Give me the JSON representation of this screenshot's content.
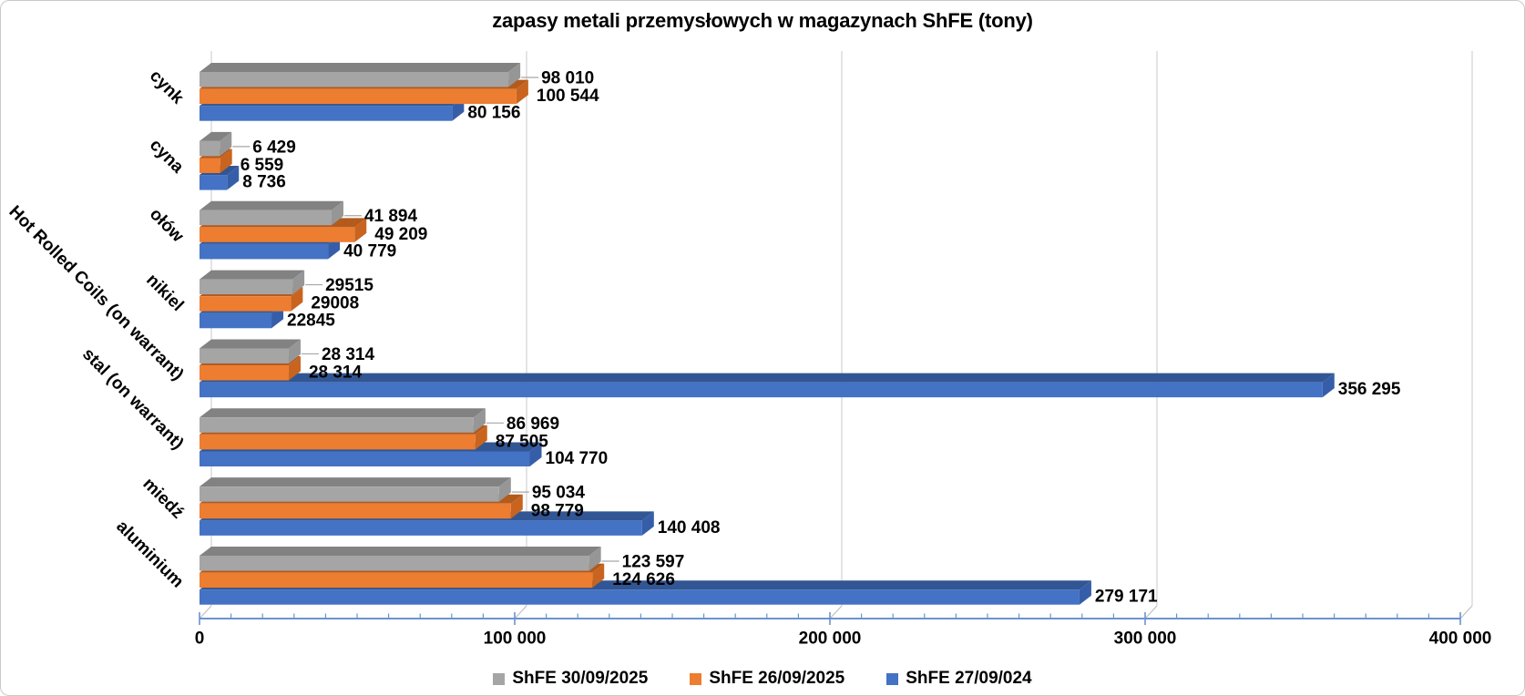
{
  "title": "zapasy metali przemysłowych w magazynach ShFE (tony)",
  "chart_data": {
    "type": "bar",
    "orientation": "horizontal",
    "style": "3d-extruded",
    "title": "zapasy metali przemysłowych w magazynach ShFE (tony)",
    "categories_top_to_bottom": [
      "cynk",
      "cyna",
      "ołów",
      "nikiel",
      "Hot Rolled Coils (on warrant)",
      "stal (on warrant)",
      "miedź",
      "aluminium"
    ],
    "series": [
      {
        "name": "ShFE 30/09/2025",
        "color": "#A5A5A5",
        "color_top": "#828282",
        "color_side": "#969696",
        "values": [
          98010,
          6429,
          41894,
          29515,
          28314,
          86969,
          95034,
          123597
        ],
        "labels": [
          "98 010",
          "6 429",
          "41 894",
          "29515",
          "28 314",
          "86 969",
          "95 034",
          "123 597"
        ]
      },
      {
        "name": "ShFE 26/09/2025",
        "color": "#ED7D31",
        "color_top": "#B35A1D",
        "color_side": "#C8641F",
        "values": [
          100544,
          6559,
          49209,
          29008,
          28314,
          87505,
          98779,
          124626
        ],
        "labels": [
          "100 544",
          "6 559",
          "49 209",
          "29008",
          "28 314",
          "87 505",
          "98 779",
          "124 626"
        ]
      },
      {
        "name": "ShFE 27/09/024",
        "color": "#4472C4",
        "color_top": "#325693",
        "color_side": "#365EA8",
        "values": [
          80156,
          8736,
          40779,
          22845,
          356295,
          104770,
          140408,
          279171
        ],
        "labels": [
          "80 156",
          "8 736",
          "40 779",
          "22845",
          "356 295",
          "104 770",
          "140 408",
          "279 171"
        ]
      }
    ],
    "x_axis": {
      "min": 0,
      "max": 400000,
      "major_step": 100000,
      "minor_step": 10000,
      "tick_labels": [
        "0",
        "100 000",
        "200 000",
        "300 000",
        "400 000"
      ]
    },
    "grid": true,
    "legend_position": "bottom",
    "colors": {
      "gridline": "#DCDCDC",
      "axis_line": "#6A93D1",
      "floor_connector": "#C0C0C0",
      "leader_line": "#A6A6A6",
      "label_text": "#000000"
    }
  }
}
